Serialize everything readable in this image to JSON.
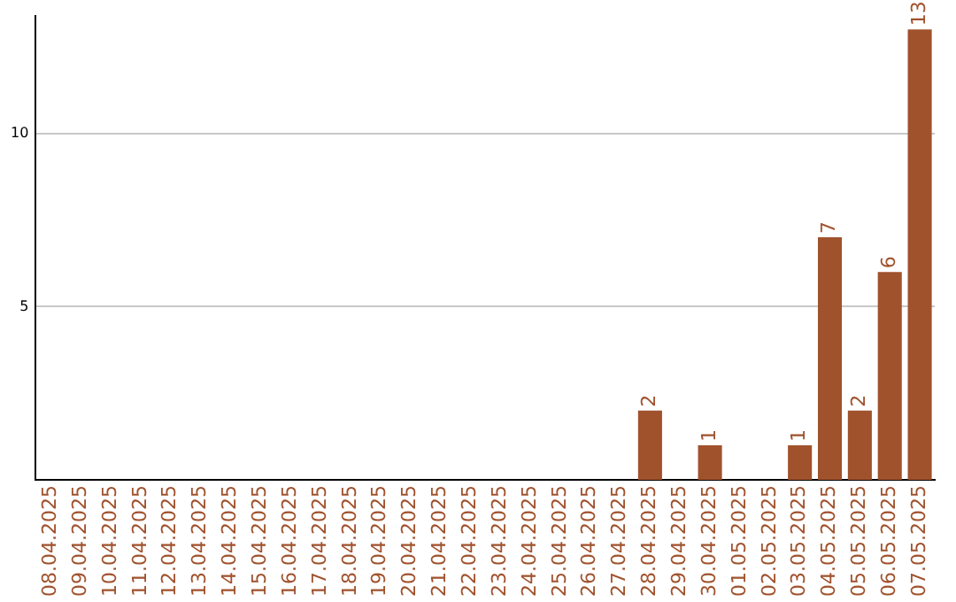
{
  "chart_data": {
    "type": "bar",
    "categories": [
      "08.04.2025",
      "09.04.2025",
      "10.04.2025",
      "11.04.2025",
      "12.04.2025",
      "13.04.2025",
      "14.04.2025",
      "15.04.2025",
      "16.04.2025",
      "17.04.2025",
      "18.04.2025",
      "19.04.2025",
      "20.04.2025",
      "21.04.2025",
      "22.04.2025",
      "23.04.2025",
      "24.04.2025",
      "25.04.2025",
      "26.04.2025",
      "27.04.2025",
      "28.04.2025",
      "29.04.2025",
      "30.04.2025",
      "01.05.2025",
      "02.05.2025",
      "03.05.2025",
      "04.05.2025",
      "05.05.2025",
      "06.05.2025",
      "07.05.2025"
    ],
    "values": [
      0,
      0,
      0,
      0,
      0,
      0,
      0,
      0,
      0,
      0,
      0,
      0,
      0,
      0,
      0,
      0,
      0,
      0,
      0,
      0,
      2,
      0,
      1,
      0,
      0,
      1,
      7,
      2,
      6,
      13
    ],
    "value_labels": [
      null,
      null,
      null,
      null,
      null,
      null,
      null,
      null,
      null,
      null,
      null,
      null,
      null,
      null,
      null,
      null,
      null,
      null,
      null,
      null,
      "2",
      null,
      "1",
      null,
      null,
      "1",
      "7",
      "2",
      "6",
      "13"
    ],
    "color": "#a0522d",
    "ylim": [
      0,
      13.4
    ],
    "yticks": [
      5,
      10
    ],
    "grid": "y",
    "legend": false
  }
}
